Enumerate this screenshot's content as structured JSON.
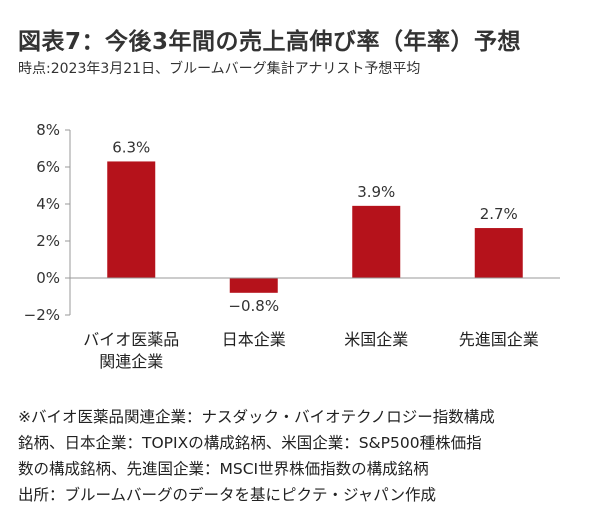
{
  "header": {
    "title": "図表7：今後3年間の売上高伸び率（年率）予想",
    "subtitle": "時点:2023年3月21日、ブルームバーグ集計アナリスト予想平均"
  },
  "chart_data": {
    "type": "bar",
    "categories": [
      [
        "バイオ医薬品",
        "関連企業"
      ],
      [
        "日本企業"
      ],
      [
        "米国企業"
      ],
      [
        "先進国企業"
      ]
    ],
    "values": [
      6.3,
      -0.8,
      3.9,
      2.7
    ],
    "value_labels": [
      "6.3%",
      "−0.8%",
      "3.9%",
      "2.7%"
    ],
    "y_ticks": [
      8,
      6,
      4,
      2,
      0,
      -2
    ],
    "y_tick_labels": [
      "8%",
      "6%",
      "4%",
      "2%",
      "0%",
      "−2%"
    ],
    "ylim": [
      -2,
      8
    ],
    "bar_color": "#b5121b",
    "axis_color": "#999999",
    "grid": false,
    "legend": false
  },
  "notes": [
    "※バイオ医薬品関連企業：ナスダック・バイオテクノロジー指数構成",
    "銘柄、日本企業：TOPIXの構成銘柄、米国企業：S&P500種株価指",
    "数の構成銘柄、先進国企業：MSCI世界株価指数の構成銘柄",
    "出所：ブルームバーグのデータを基にピクテ・ジャパン作成"
  ]
}
